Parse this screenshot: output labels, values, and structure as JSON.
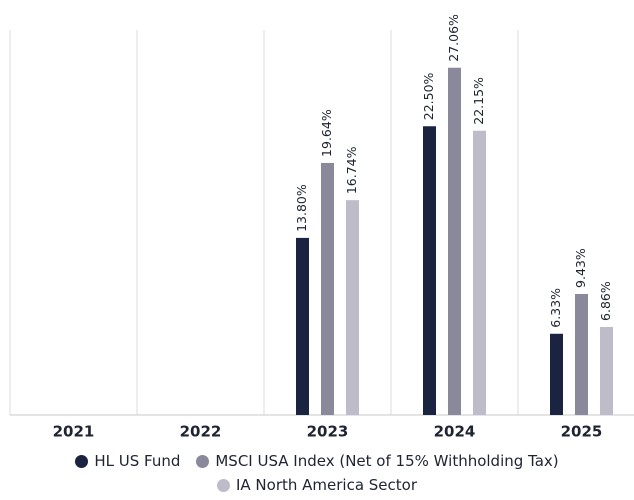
{
  "chart_data": {
    "type": "bar",
    "categories": [
      "2021",
      "2022",
      "2023",
      "2024",
      "2025"
    ],
    "series": [
      {
        "name": "HL US Fund",
        "color": "#1a2340",
        "values": [
          null,
          null,
          13.8,
          22.5,
          6.33
        ],
        "value_labels": [
          null,
          null,
          "13.80%",
          "22.50%",
          "6.33%"
        ]
      },
      {
        "name": "MSCI USA Index (Net of 15% Withholding Tax)",
        "color": "#8a899c",
        "values": [
          null,
          null,
          19.64,
          27.06,
          9.43
        ],
        "value_labels": [
          null,
          null,
          "19.64%",
          "27.06%",
          "9.43%"
        ]
      },
      {
        "name": "IA North America Sector",
        "color": "#bebcc8",
        "values": [
          null,
          null,
          16.74,
          22.15,
          6.86
        ],
        "value_labels": [
          null,
          null,
          "16.74%",
          "22.15%",
          "6.86%"
        ]
      }
    ],
    "ylim": [
      0,
      30
    ]
  }
}
